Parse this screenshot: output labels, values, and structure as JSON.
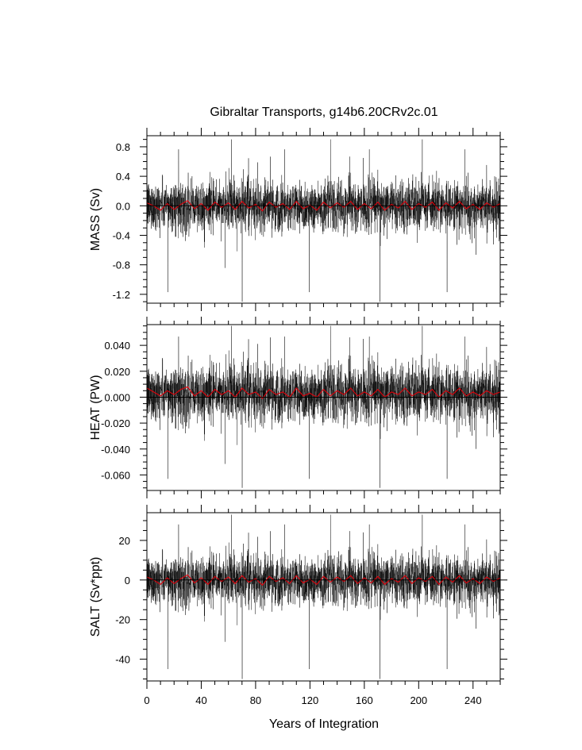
{
  "figure": {
    "title": "Gibraltar Transports, g14b6.20CRv2c.01",
    "xlabel": "Years of Integration"
  },
  "colors": {
    "raw": "#000000",
    "smooth": "#e0000a",
    "axis": "#000000"
  },
  "chart_data": [
    {
      "type": "line",
      "ylabel": "MASS (Sv)",
      "xlim": [
        0,
        260
      ],
      "ylim": [
        -1.32,
        0.95
      ],
      "yticks": [
        0.8,
        0.4,
        0.0,
        -0.4,
        -0.8,
        -1.2
      ],
      "ytick_labels": [
        "0.8",
        "0.4",
        "0.0",
        "-0.4",
        "-0.8",
        "-1.2"
      ],
      "xticks": [
        0,
        40,
        80,
        120,
        160,
        200,
        240
      ],
      "xtick_labels": [
        "0",
        "40",
        "80",
        "120",
        "160",
        "200",
        "240"
      ],
      "zero_line": 0.0,
      "series": [
        {
          "role": "raw",
          "x_step": 0.0833,
          "n": 3120,
          "mean": 0.0,
          "sd": 0.17,
          "max": 0.9,
          "min": -1.3
        },
        {
          "role": "smooth",
          "x": [
            0,
            5,
            10,
            15,
            20,
            25,
            30,
            35,
            40,
            45,
            50,
            55,
            60,
            65,
            70,
            75,
            80,
            85,
            90,
            95,
            100,
            105,
            110,
            115,
            120,
            125,
            130,
            135,
            140,
            145,
            150,
            155,
            160,
            165,
            170,
            175,
            180,
            185,
            190,
            195,
            200,
            205,
            210,
            215,
            220,
            225,
            230,
            235,
            240,
            245,
            250,
            255,
            260
          ],
          "values": [
            0.04,
            0.0,
            -0.06,
            0.03,
            -0.05,
            0.02,
            0.07,
            -0.04,
            0.03,
            -0.06,
            0.05,
            -0.02,
            0.04,
            -0.05,
            0.06,
            -0.03,
            0.02,
            -0.07,
            0.05,
            -0.02,
            0.03,
            -0.05,
            0.06,
            -0.04,
            0.01,
            -0.06,
            0.05,
            -0.03,
            0.04,
            -0.02,
            0.06,
            -0.05,
            0.03,
            -0.04,
            0.05,
            -0.06,
            0.02,
            -0.03,
            0.06,
            -0.05,
            0.03,
            -0.02,
            0.05,
            -0.06,
            0.04,
            -0.03,
            0.06,
            -0.04,
            0.02,
            -0.05,
            0.04,
            -0.02,
            0.03
          ]
        }
      ]
    },
    {
      "type": "line",
      "ylabel": "HEAT (PW)",
      "xlim": [
        0,
        260
      ],
      "ylim": [
        -0.072,
        0.056
      ],
      "yticks": [
        0.04,
        0.02,
        0.0,
        -0.02,
        -0.04,
        -0.06
      ],
      "ytick_labels": [
        "0.040",
        "0.020",
        "0.000",
        "-0.020",
        "-0.040",
        "-0.060"
      ],
      "xticks": [
        0,
        40,
        80,
        120,
        160,
        200,
        240
      ],
      "xtick_labels": [
        "",
        "",
        "",
        "",
        "",
        "",
        ""
      ],
      "zero_line": 0.0,
      "series": [
        {
          "role": "raw",
          "x_step": 0.0833,
          "n": 3120,
          "mean": 0.003,
          "sd": 0.011,
          "max": 0.055,
          "min": -0.07
        },
        {
          "role": "smooth",
          "x": [
            0,
            5,
            10,
            15,
            20,
            25,
            30,
            35,
            40,
            45,
            50,
            55,
            60,
            65,
            70,
            75,
            80,
            85,
            90,
            95,
            100,
            105,
            110,
            115,
            120,
            125,
            130,
            135,
            140,
            145,
            150,
            155,
            160,
            165,
            170,
            175,
            180,
            185,
            190,
            195,
            200,
            205,
            210,
            215,
            220,
            225,
            230,
            235,
            240,
            245,
            250,
            255,
            260
          ],
          "values": [
            0.007,
            0.004,
            0.001,
            0.005,
            0.002,
            0.006,
            0.008,
            0.001,
            0.005,
            0.0,
            0.006,
            0.002,
            0.005,
            0.0,
            0.007,
            0.002,
            0.004,
            -0.001,
            0.006,
            0.002,
            0.004,
            0.0,
            0.007,
            0.001,
            0.003,
            0.0,
            0.006,
            0.001,
            0.005,
            0.002,
            0.007,
            0.001,
            0.004,
            0.001,
            0.006,
            0.0,
            0.004,
            0.002,
            0.007,
            0.001,
            0.004,
            0.002,
            0.006,
            0.0,
            0.005,
            0.002,
            0.007,
            0.001,
            0.004,
            0.001,
            0.005,
            0.002,
            0.004
          ]
        }
      ]
    },
    {
      "type": "line",
      "ylabel": "SALT (Sv*ppt)",
      "xlim": [
        0,
        260
      ],
      "ylim": [
        -51,
        34
      ],
      "yticks": [
        20,
        0,
        -20,
        -40
      ],
      "ytick_labels": [
        "20",
        "0",
        "-20",
        "-40"
      ],
      "xticks": [
        0,
        40,
        80,
        120,
        160,
        200,
        240
      ],
      "xtick_labels": [
        "0",
        "40",
        "80",
        "120",
        "160",
        "200",
        "240"
      ],
      "zero_line": 0,
      "series": [
        {
          "role": "raw",
          "x_step": 0.0833,
          "n": 3120,
          "mean": 0.0,
          "sd": 6.3,
          "max": 33,
          "min": -50
        },
        {
          "role": "smooth",
          "x": [
            0,
            5,
            10,
            15,
            20,
            25,
            30,
            35,
            40,
            45,
            50,
            55,
            60,
            65,
            70,
            75,
            80,
            85,
            90,
            95,
            100,
            105,
            110,
            115,
            120,
            125,
            130,
            135,
            140,
            145,
            150,
            155,
            160,
            165,
            170,
            175,
            180,
            185,
            190,
            195,
            200,
            205,
            210,
            215,
            220,
            225,
            230,
            235,
            240,
            245,
            250,
            255,
            260
          ],
          "values": [
            1.5,
            0.0,
            -2.2,
            1.1,
            -1.8,
            0.7,
            2.6,
            -1.5,
            1.1,
            -2.2,
            1.8,
            -0.7,
            1.5,
            -1.8,
            2.2,
            -1.1,
            0.7,
            -2.6,
            1.8,
            -0.7,
            1.1,
            -1.8,
            2.2,
            -1.5,
            0.4,
            -2.2,
            1.8,
            -1.1,
            1.5,
            -0.7,
            2.2,
            -1.8,
            1.1,
            -1.5,
            1.8,
            -2.2,
            0.7,
            -1.1,
            2.2,
            -1.8,
            1.1,
            -0.7,
            1.8,
            -2.2,
            1.5,
            -1.1,
            2.2,
            -1.5,
            0.7,
            -1.8,
            1.5,
            -0.7,
            1.1
          ]
        }
      ]
    }
  ]
}
